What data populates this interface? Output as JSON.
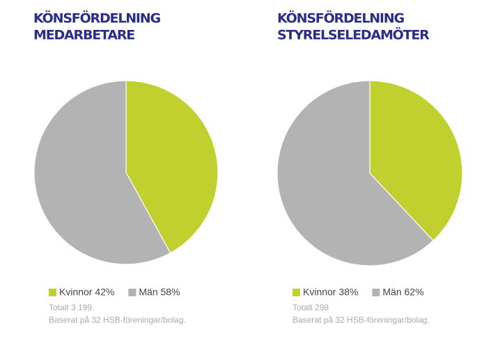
{
  "chart_data": [
    {
      "type": "pie",
      "title": [
        "KÖNSFÖRDELNING",
        "MEDARBETARE"
      ],
      "categories": [
        "Kvinnor 42%",
        "Män 58%"
      ],
      "values": [
        42,
        58
      ],
      "colors": [
        "#bfd02f",
        "#b3b3b3"
      ],
      "notes": [
        "Totalt 3 199.",
        "Baserat på 32 HSB-föreningar/bolag."
      ]
    },
    {
      "type": "pie",
      "title": [
        "KÖNSFÖRDELNING",
        "STYRELSELEDAMÖTER"
      ],
      "categories": [
        "Kvinnor 38%",
        "Män 62%"
      ],
      "values": [
        38,
        62
      ],
      "colors": [
        "#bfd02f",
        "#b3b3b3"
      ],
      "notes": [
        "Totalt 298",
        "Baserat på 32 HSB-föreningar/bolag."
      ]
    }
  ]
}
